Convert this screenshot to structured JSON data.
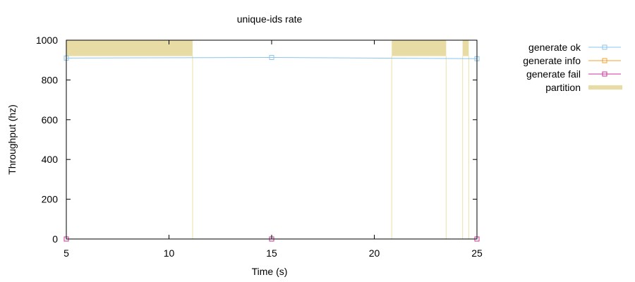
{
  "chart_data": {
    "type": "line",
    "title": "unique-ids rate",
    "xlabel": "Time (s)",
    "ylabel": "Throughput (hz)",
    "xlim": [
      5,
      25
    ],
    "ylim": [
      0,
      1000
    ],
    "xticks": [
      5,
      10,
      15,
      20,
      25
    ],
    "yticks": [
      0,
      200,
      400,
      600,
      800,
      1000
    ],
    "grid": false,
    "legend_position": "outside-right",
    "series": [
      {
        "name": "generate ok",
        "color": "#8cc6ec",
        "marker": "square",
        "x": [
          5,
          15,
          25
        ],
        "y": [
          910,
          913,
          907
        ]
      },
      {
        "name": "generate info",
        "color": "#f0a030",
        "marker": "square",
        "x": [
          5,
          15,
          25
        ],
        "y": [
          0,
          0,
          0
        ]
      },
      {
        "name": "generate fail",
        "color": "#cc3399",
        "marker": "square",
        "x": [
          5,
          15,
          25
        ],
        "y": [
          0,
          0,
          0
        ]
      }
    ],
    "partition": {
      "name": "partition",
      "color": "#e8dca4",
      "line_color": "#efe4b8",
      "y_start": 920,
      "intervals": [
        [
          5.0,
          11.15
        ],
        [
          20.85,
          23.5
        ],
        [
          24.3,
          24.6
        ]
      ]
    }
  }
}
